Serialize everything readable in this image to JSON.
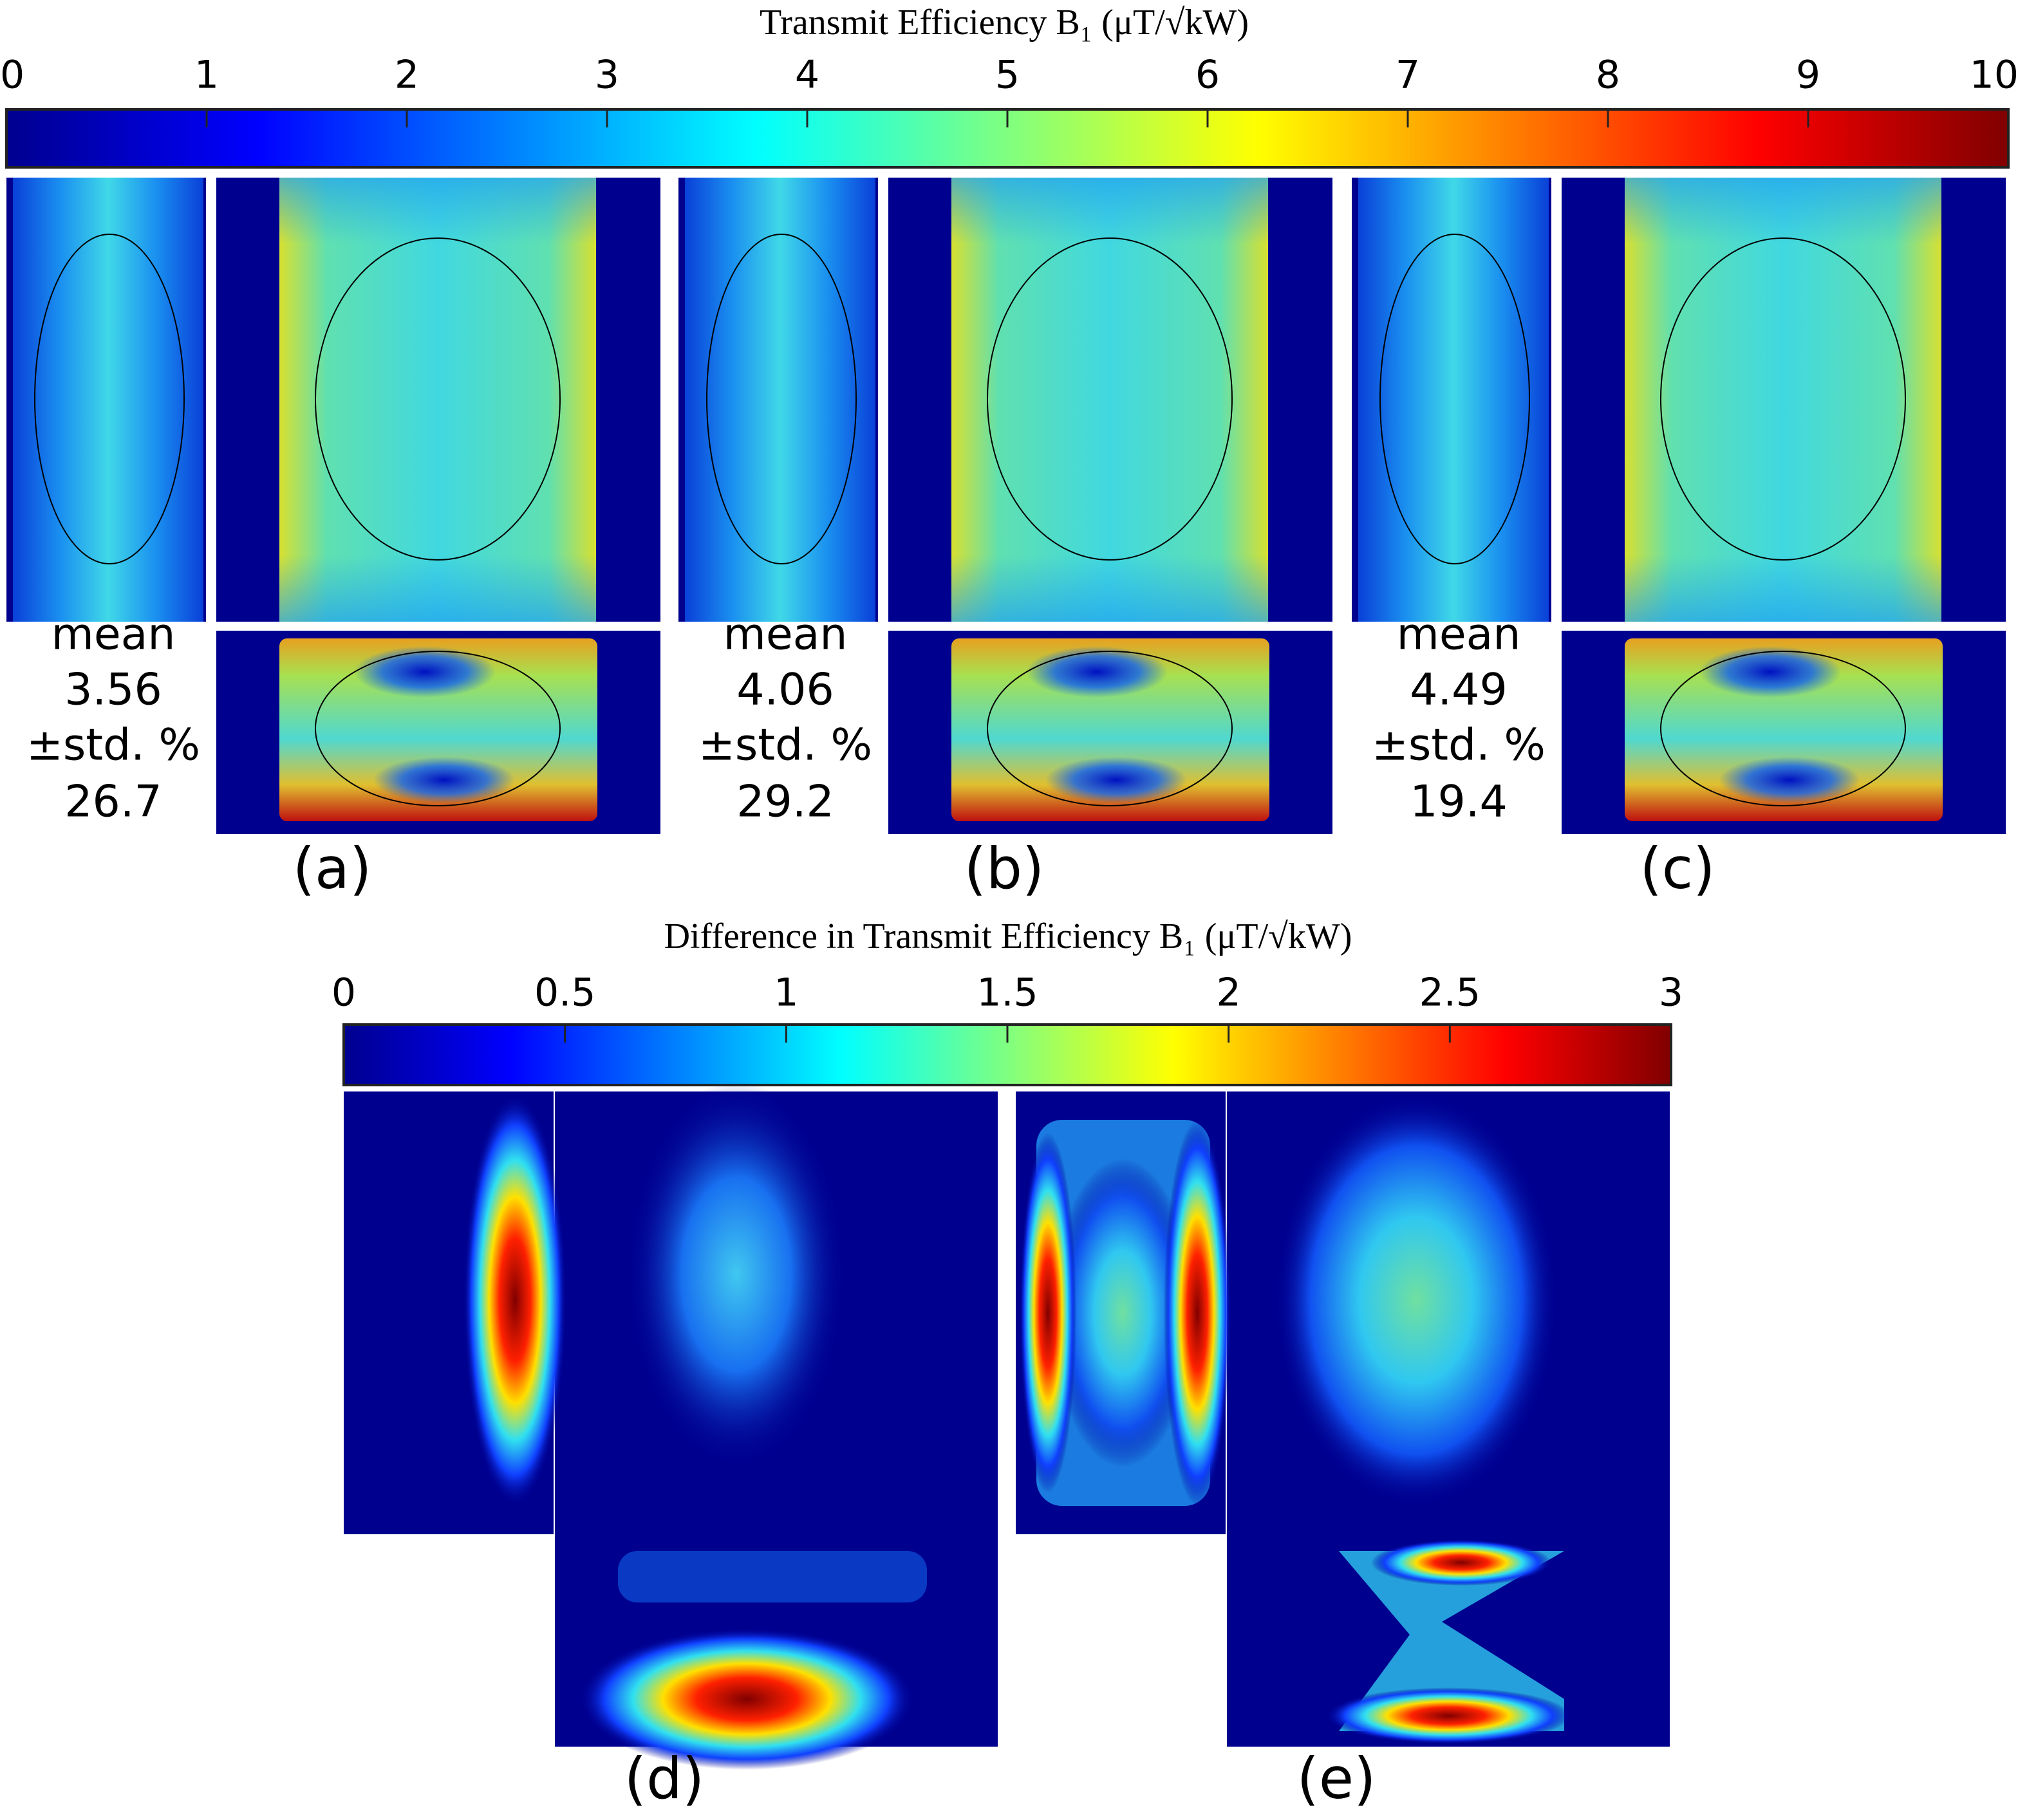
{
  "colorbars": [
    {
      "title": "Transmit Efficiency B₁ (μT/√kW)",
      "lim": [
        0,
        10
      ],
      "ticks": [
        0,
        1,
        2,
        3,
        4,
        5,
        6,
        7,
        8,
        9,
        10
      ]
    },
    {
      "title": "Difference in Transmit Efficiency B₁ (μT/√kW)",
      "lim": [
        0,
        3
      ],
      "ticks": [
        0,
        0.5,
        1,
        1.5,
        2,
        2.5,
        3
      ]
    }
  ],
  "panels": [
    {
      "label": "(a)",
      "stat_label": "mean",
      "mean": 3.56,
      "std_label": "±std. %",
      "std": 26.7
    },
    {
      "label": "(b)",
      "stat_label": "mean",
      "mean": 4.06,
      "std_label": "±std. %",
      "std": 29.2
    },
    {
      "label": "(c)",
      "stat_label": "mean",
      "mean": 4.49,
      "std_label": "±std. %",
      "std": 19.4
    },
    {
      "label": "(d)"
    },
    {
      "label": "(e)"
    }
  ]
}
